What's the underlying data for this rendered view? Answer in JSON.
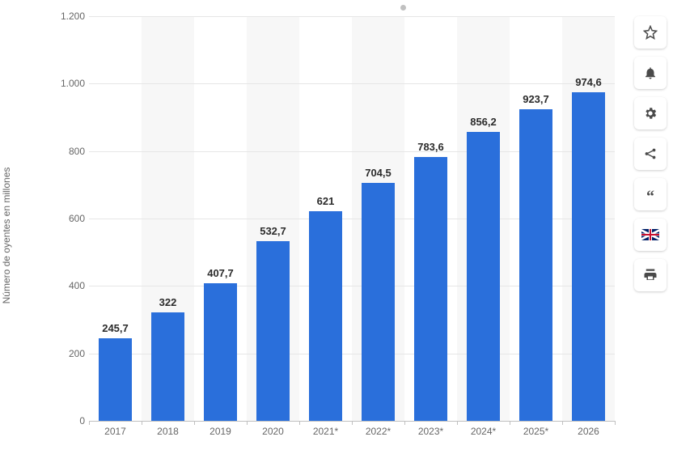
{
  "chart": {
    "type": "bar",
    "y_axis_title": "Número de oyentes en millones",
    "categories": [
      "2017",
      "2018",
      "2019",
      "2020",
      "2021*",
      "2022*",
      "2023*",
      "2024*",
      "2025*",
      "2026"
    ],
    "values": [
      245.7,
      322,
      407.7,
      532.7,
      621,
      704.5,
      783.6,
      856.2,
      923.7,
      974.6
    ],
    "value_labels": [
      "245,7",
      "322",
      "407,7",
      "532,7",
      "621",
      "704,5",
      "783,6",
      "856,2",
      "923,7",
      "974,6"
    ],
    "bar_color": "#2a6fdb",
    "background_color": "#ffffff",
    "alt_band_color": "#f7f7f7",
    "grid_color": "#e6e6e6",
    "axis_line_color": "#c0c0c0",
    "text_color": "#666666",
    "label_color": "#2b2b2b",
    "ylim": [
      0,
      1200
    ],
    "yticks": [
      0,
      200,
      400,
      600,
      800,
      1000,
      1200
    ],
    "ytick_labels": [
      "0",
      "200",
      "400",
      "600",
      "800",
      "1.000",
      "1.200"
    ],
    "bar_width_ratio": 0.62,
    "title_fontsize": 12,
    "label_fontsize": 12,
    "value_label_fontsize": 13,
    "value_label_fontweight": 700
  },
  "toolbar": {
    "items": [
      {
        "name": "star-icon",
        "title": "Favorite"
      },
      {
        "name": "bell-icon",
        "title": "Notifications"
      },
      {
        "name": "gear-icon",
        "title": "Settings"
      },
      {
        "name": "share-icon",
        "title": "Share"
      },
      {
        "name": "quote-icon",
        "title": "Cite"
      },
      {
        "name": "flag-icon",
        "title": "Language"
      },
      {
        "name": "print-icon",
        "title": "Print"
      }
    ]
  }
}
